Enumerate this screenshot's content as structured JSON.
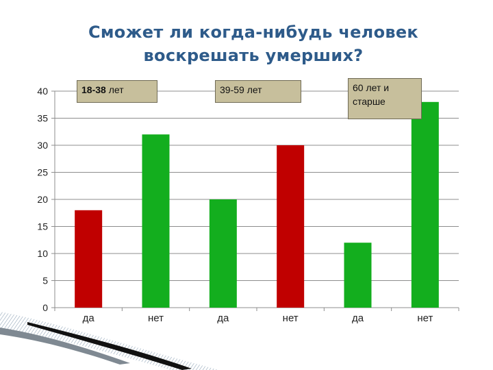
{
  "title_line1": "Сможет ли когда-нибудь человек",
  "title_line2": "воскрешать умерших?",
  "groups": [
    {
      "label_bold": "18-38",
      "label_rest": " лет"
    },
    {
      "label": "39-59 лет"
    },
    {
      "label_line1": "60 лет и",
      "label_line2": "старше"
    }
  ],
  "colors": {
    "yes": "#c00000",
    "no": "#13ae1e",
    "box_bg": "#c7bf9c"
  },
  "chart_data": {
    "type": "bar",
    "categories": [
      "да",
      "нет",
      "да",
      "нет",
      "да",
      "нет"
    ],
    "values": [
      18,
      32,
      20,
      30,
      12,
      38
    ],
    "bar_colors": [
      "#c00000",
      "#13ae1e",
      "#13ae1e",
      "#c00000",
      "#13ae1e",
      "#13ae1e"
    ],
    "yticks": [
      0,
      5,
      10,
      15,
      20,
      25,
      30,
      35,
      40
    ],
    "ylim": [
      0,
      40
    ],
    "grid": true,
    "title": "Сможет ли когда-нибудь человек воскрешать умерших?",
    "xlabel": "",
    "ylabel": ""
  }
}
